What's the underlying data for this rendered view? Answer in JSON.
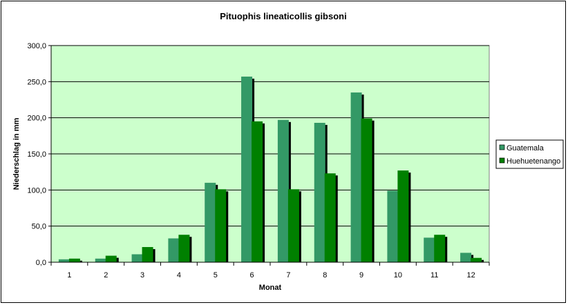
{
  "chart_data": {
    "type": "bar",
    "title": "Pituophis lineaticollis  gibsoni",
    "xlabel": "Monat",
    "ylabel": "Niederschlag in mm",
    "categories": [
      "1",
      "2",
      "3",
      "4",
      "5",
      "6",
      "7",
      "8",
      "9",
      "10",
      "11",
      "12"
    ],
    "ylim": [
      0,
      300
    ],
    "yticks": [
      "0,0",
      "50,0",
      "100,0",
      "150,0",
      "200,0",
      "250,0",
      "300,0"
    ],
    "grid": true,
    "legend_position": "right",
    "plot_background": "#ccffcc",
    "series": [
      {
        "name": "Guatemala",
        "color": "#339966",
        "values": [
          4,
          5,
          11,
          33,
          110,
          257,
          197,
          193,
          235,
          99,
          34,
          13
        ]
      },
      {
        "name": "Huehuetenango",
        "color": "#008000",
        "values": [
          5,
          9,
          21,
          38,
          101,
          195,
          101,
          123,
          199,
          127,
          38,
          6
        ]
      }
    ]
  }
}
